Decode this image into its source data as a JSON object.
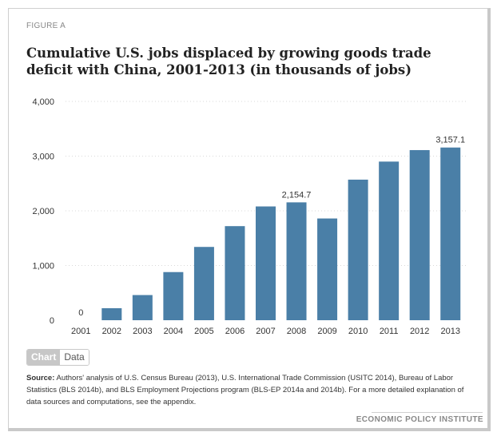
{
  "figure_label": "FIGURE A",
  "title": "Cumulative U.S. jobs displaced by growing goods trade deficit with China, 2001-2013 (in thousands of jobs)",
  "colors": {
    "bar": "#4a7fa7",
    "grid": "#d9d9d9"
  },
  "chart_data": {
    "type": "bar",
    "title": "Cumulative U.S. jobs displaced by growing goods trade deficit with China, 2001-2013 (in thousands of jobs)",
    "xlabel": "",
    "ylabel": "",
    "ylim": [
      0,
      4000
    ],
    "yticks": [
      0,
      1000,
      2000,
      3000,
      4000
    ],
    "ytick_labels": [
      "0",
      "1,000",
      "2,000",
      "3,000",
      "4,000"
    ],
    "grid": true,
    "categories": [
      "2001",
      "2002",
      "2003",
      "2004",
      "2005",
      "2006",
      "2007",
      "2008",
      "2009",
      "2010",
      "2011",
      "2012",
      "2013"
    ],
    "values": [
      0,
      220,
      460,
      880,
      1340,
      1720,
      2080,
      2154.7,
      1860,
      2570,
      2900,
      3110,
      3157.1
    ],
    "data_labels": [
      {
        "index": 0,
        "text": "0"
      },
      {
        "index": 7,
        "text": "2,154.7"
      },
      {
        "index": 12,
        "text": "3,157.1"
      }
    ]
  },
  "toggle": {
    "chart_label": "Chart",
    "data_label": "Data"
  },
  "source": {
    "label": "Source:",
    "text": "Authors' analysis of U.S. Census Bureau (2013), U.S. International Trade Commission (USITC 2014), Bureau of Labor Statistics (BLS 2014b), and BLS Employment Projections program (BLS-EP 2014a and 2014b). For a more detailed explanation of data sources and computations, see the appendix."
  },
  "brand": "ECONOMIC POLICY INSTITUTE"
}
